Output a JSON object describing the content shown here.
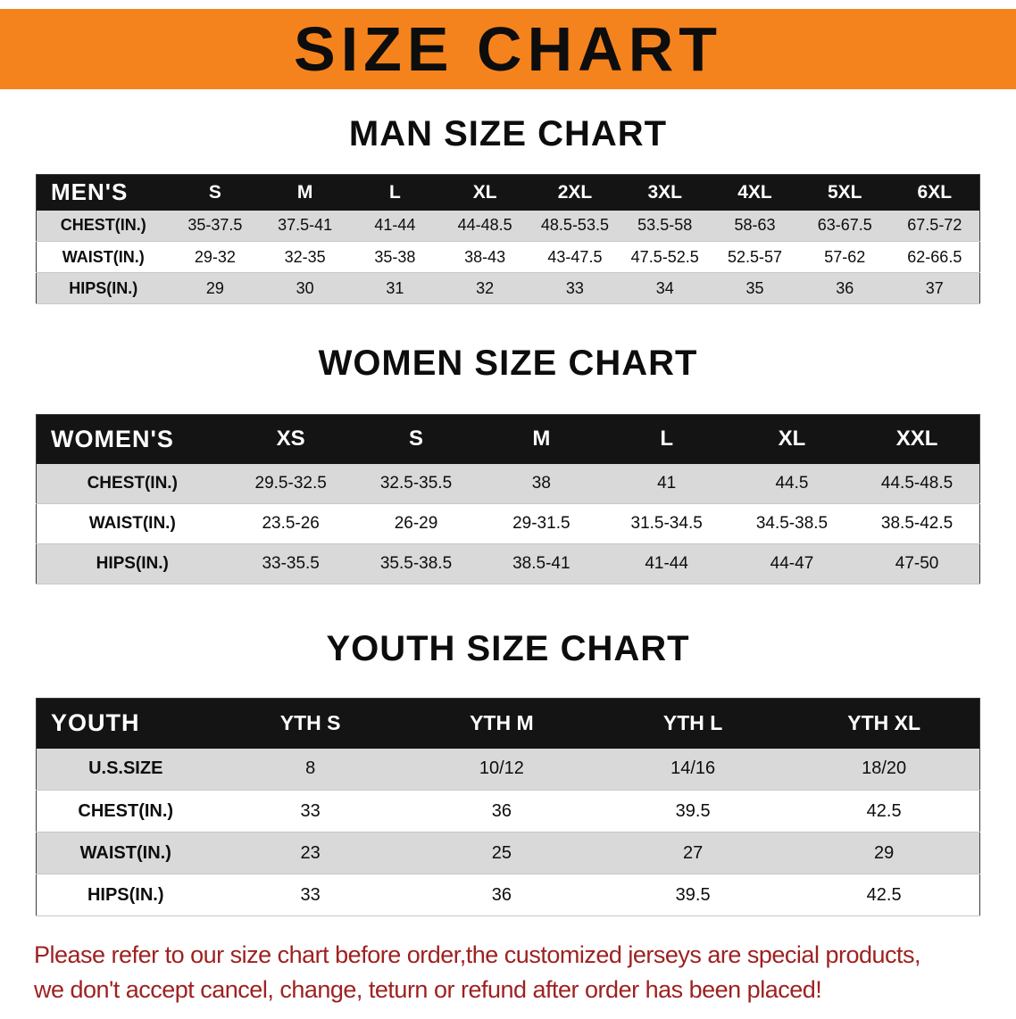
{
  "page": {
    "title_banner": "SIZE CHART",
    "footer_lines": [
      "Please refer to our size chart before order,the customized jerseys are special products,",
      "we don't accept cancel, change, teturn or refund after order has been placed!"
    ]
  },
  "colors": {
    "banner_bg": "#f5831d",
    "table_header_bg": "#141414",
    "row_shade": "#d9d9d9",
    "footer_text": "#9e2121",
    "heading_text": "#0d0d0d"
  },
  "sections": [
    {
      "id": "men",
      "heading": "MAN SIZE CHART",
      "table": {
        "header": [
          "MEN'S",
          "S",
          "M",
          "L",
          "XL",
          "2XL",
          "3XL",
          "4XL",
          "5XL",
          "6XL"
        ],
        "rows": [
          {
            "label": "CHEST(IN.)",
            "values": [
              "35-37.5",
              "37.5-41",
              "41-44",
              "44-48.5",
              "48.5-53.5",
              "53.5-58",
              "58-63",
              "63-67.5",
              "67.5-72"
            ]
          },
          {
            "label": "WAIST(IN.)",
            "values": [
              "29-32",
              "32-35",
              "35-38",
              "38-43",
              "43-47.5",
              "47.5-52.5",
              "52.5-57",
              "57-62",
              "62-66.5"
            ]
          },
          {
            "label": "HIPS(IN.)",
            "values": [
              "29",
              "30",
              "31",
              "32",
              "33",
              "34",
              "35",
              "36",
              "37"
            ]
          }
        ]
      }
    },
    {
      "id": "women",
      "heading": "WOMEN SIZE CHART",
      "table": {
        "header": [
          "WOMEN'S",
          "XS",
          "S",
          "M",
          "L",
          "XL",
          "XXL"
        ],
        "rows": [
          {
            "label": "CHEST(IN.)",
            "values": [
              "29.5-32.5",
              "32.5-35.5",
              "38",
              "41",
              "44.5",
              "44.5-48.5"
            ]
          },
          {
            "label": "WAIST(IN.)",
            "values": [
              "23.5-26",
              "26-29",
              "29-31.5",
              "31.5-34.5",
              "34.5-38.5",
              "38.5-42.5"
            ]
          },
          {
            "label": "HIPS(IN.)",
            "values": [
              "33-35.5",
              "35.5-38.5",
              "38.5-41",
              "41-44",
              "44-47",
              "47-50"
            ]
          }
        ]
      }
    },
    {
      "id": "youth",
      "heading": "YOUTH SIZE CHART",
      "table": {
        "header": [
          "YOUTH",
          "YTH S",
          "YTH M",
          "YTH L",
          "YTH XL"
        ],
        "rows": [
          {
            "label": "U.S.SIZE",
            "values": [
              "8",
              "10/12",
              "14/16",
              "18/20"
            ]
          },
          {
            "label": "CHEST(IN.)",
            "values": [
              "33",
              "36",
              "39.5",
              "42.5"
            ]
          },
          {
            "label": "WAIST(IN.)",
            "values": [
              "23",
              "25",
              "27",
              "29"
            ]
          },
          {
            "label": "HIPS(IN.)",
            "values": [
              "33",
              "36",
              "39.5",
              "42.5"
            ]
          }
        ]
      }
    }
  ]
}
